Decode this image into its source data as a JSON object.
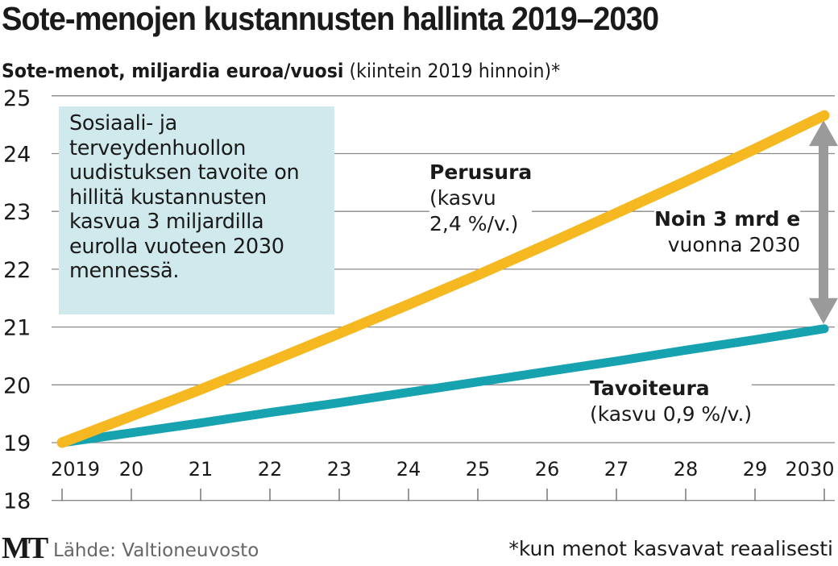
{
  "title": "Sote-menojen kustannusten hallinta 2019–2030",
  "subtitle_bold": "Sote-menot, miljardia euroa/vuosi",
  "subtitle_rest": " (kiintein 2019 hinnoin)*",
  "infobox": "Sosiaali- ja terveydenhuollon uudistuksen tavoite on hillitä kustannusten kasvua 3 miljardilla eurolla vuoteen 2030 mennessä.",
  "perusura_label": {
    "name": "Perusura",
    "line1": "(kasvu",
    "line2": "2,4 %/v.)"
  },
  "tavoiteura_label": {
    "name": "Tavoiteura",
    "detail": "(kasvu 0,9 %/v.)"
  },
  "gap_label": {
    "line1": "Noin 3 mrd e",
    "line2": "vuonna 2030"
  },
  "footer": {
    "logo": "MT",
    "source": "Lähde: Valtioneuvosto",
    "note": "*kun menot kasvavat reaalisesti"
  },
  "colors": {
    "perusura": "#f5b820",
    "tavoiteura": "#17a2b0",
    "arrow": "#9a9a9a",
    "infobox": "#cfe9ec"
  },
  "chart_data": {
    "type": "line",
    "title": "Sote-menojen kustannusten hallinta 2019–2030",
    "ylabel": "Sote-menot, miljardia euroa/vuosi (kiintein 2019 hinnoin)*",
    "categories": [
      "2019",
      "20",
      "21",
      "22",
      "23",
      "24",
      "25",
      "26",
      "27",
      "28",
      "29",
      "2030"
    ],
    "yticks": [
      "18",
      "19",
      "20",
      "21",
      "22",
      "23",
      "24",
      "25"
    ],
    "ylim": [
      18,
      25
    ],
    "series": [
      {
        "name": "Perusura",
        "values": [
          19.0,
          19.46,
          19.92,
          20.4,
          20.89,
          21.39,
          21.9,
          22.43,
          22.97,
          23.52,
          24.08,
          24.66
        ]
      },
      {
        "name": "Tavoiteura",
        "values": [
          19.0,
          19.17,
          19.34,
          19.52,
          19.69,
          19.87,
          20.05,
          20.23,
          20.41,
          20.6,
          20.78,
          20.97
        ]
      }
    ]
  }
}
